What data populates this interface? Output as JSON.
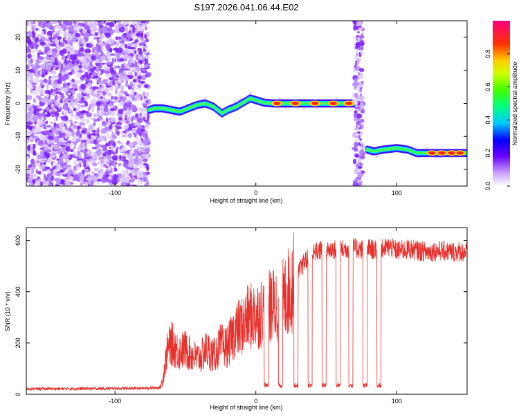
{
  "title": "S197.2026.041.06.44.E02",
  "chart_data": [
    {
      "type": "heatmap",
      "xlabel": "Height of straight line (km)",
      "ylabel": "Frequency (Hz)",
      "xlim": [
        -163,
        150
      ],
      "ylim": [
        -25,
        25
      ],
      "xticks": [
        "-100",
        "0",
        "100"
      ],
      "xtick_values": [
        -100,
        0,
        100
      ],
      "yticks": [
        "-20",
        "-10",
        "0",
        "10",
        "20"
      ],
      "ytick_values": [
        -20,
        -10,
        0,
        10,
        20
      ],
      "segments": [
        {
          "x_start": -163,
          "x_end": -76,
          "kind": "noise",
          "f_range": [
            -25,
            25
          ]
        },
        {
          "x_start": -76,
          "x_end": 70,
          "kind": "signal",
          "track": [
            [
              -76,
              -2
            ],
            [
              -72,
              -1.5
            ],
            [
              -66,
              -1.5
            ],
            [
              -60,
              -2
            ],
            [
              -54,
              -2.5
            ],
            [
              -48,
              -1.5
            ],
            [
              -42,
              -0.5
            ],
            [
              -36,
              0
            ],
            [
              -30,
              -1
            ],
            [
              -24,
              -3
            ],
            [
              -20,
              -2
            ],
            [
              -14,
              -1
            ],
            [
              -8,
              0.5
            ],
            [
              -4,
              1.5
            ],
            [
              0,
              1
            ],
            [
              6,
              0.2
            ],
            [
              12,
              0
            ],
            [
              40,
              0
            ],
            [
              70,
              0
            ]
          ]
        },
        {
          "x_start": 70,
          "x_end": 76,
          "kind": "noise",
          "f_range": [
            -25,
            25
          ]
        },
        {
          "x_start": 79,
          "x_end": 150,
          "kind": "signal",
          "track": [
            [
              79,
              -14
            ],
            [
              84,
              -14.5
            ],
            [
              90,
              -14
            ],
            [
              100,
              -13.5
            ],
            [
              108,
              -14
            ],
            [
              114,
              -15
            ],
            [
              150,
              -15
            ]
          ]
        }
      ],
      "peak_points": [
        [
          15,
          0
        ],
        [
          28,
          0
        ],
        [
          42,
          0
        ],
        [
          55,
          0
        ],
        [
          66,
          0
        ],
        [
          125,
          -15
        ],
        [
          132,
          -15
        ],
        [
          139,
          -15
        ],
        [
          145,
          -15
        ]
      ],
      "colorbar": {
        "label": "Normalized spectral amplitude",
        "ticks": [
          "0.0",
          "0.2",
          "0.4",
          "0.6",
          "0.8"
        ],
        "tick_values": [
          0,
          0.2,
          0.4,
          0.6,
          0.8
        ],
        "range": [
          0,
          1
        ]
      }
    },
    {
      "type": "line",
      "xlabel": "Height of straight line (km)",
      "ylabel": "SNR (10 * v/v)",
      "xlim": [
        -163,
        150
      ],
      "ylim": [
        0,
        650
      ],
      "xticks": [
        "-100",
        "0",
        "100"
      ],
      "xtick_values": [
        -100,
        0,
        100
      ],
      "yticks": [
        "0",
        "200",
        "400",
        "600"
      ],
      "ytick_values": [
        0,
        200,
        400,
        600
      ],
      "color": "#e8302c",
      "series": [
        {
          "name": "SNR",
          "points": [
            [
              -163,
              20
            ],
            [
              -140,
              20
            ],
            [
              -110,
              21
            ],
            [
              -80,
              22
            ],
            [
              -68,
              25
            ],
            [
              -66,
              60
            ],
            [
              -63,
              170
            ],
            [
              -60,
              200
            ],
            [
              -55,
              165
            ],
            [
              -50,
              175
            ],
            [
              -45,
              150
            ],
            [
              -40,
              140
            ],
            [
              -35,
              175
            ],
            [
              -30,
              150
            ],
            [
              -25,
              190
            ],
            [
              -20,
              185
            ],
            [
              -15,
              245
            ],
            [
              -10,
              265
            ],
            [
              -5,
              300
            ],
            [
              0,
              310
            ],
            [
              5,
              320
            ],
            [
              10,
              340
            ],
            [
              15,
              350
            ],
            [
              20,
              370
            ],
            [
              25,
              420
            ],
            [
              30,
              470
            ],
            [
              35,
              520
            ],
            [
              40,
              545
            ],
            [
              45,
              560
            ],
            [
              50,
              560
            ],
            [
              55,
              565
            ],
            [
              60,
              560
            ],
            [
              65,
              570
            ],
            [
              70,
              570
            ],
            [
              75,
              565
            ],
            [
              80,
              570
            ],
            [
              85,
              560
            ],
            [
              90,
              565
            ],
            [
              95,
              575
            ],
            [
              100,
              560
            ],
            [
              110,
              565
            ],
            [
              120,
              555
            ],
            [
              130,
              560
            ],
            [
              140,
              555
            ],
            [
              150,
              555
            ]
          ]
        }
      ],
      "dropouts": [
        [
          6,
          9
        ],
        [
          16,
          19
        ],
        [
          27,
          30
        ],
        [
          37,
          40
        ],
        [
          47,
          50
        ],
        [
          57,
          60
        ],
        [
          66,
          69
        ],
        [
          76,
          79
        ],
        [
          86,
          89
        ]
      ]
    }
  ]
}
